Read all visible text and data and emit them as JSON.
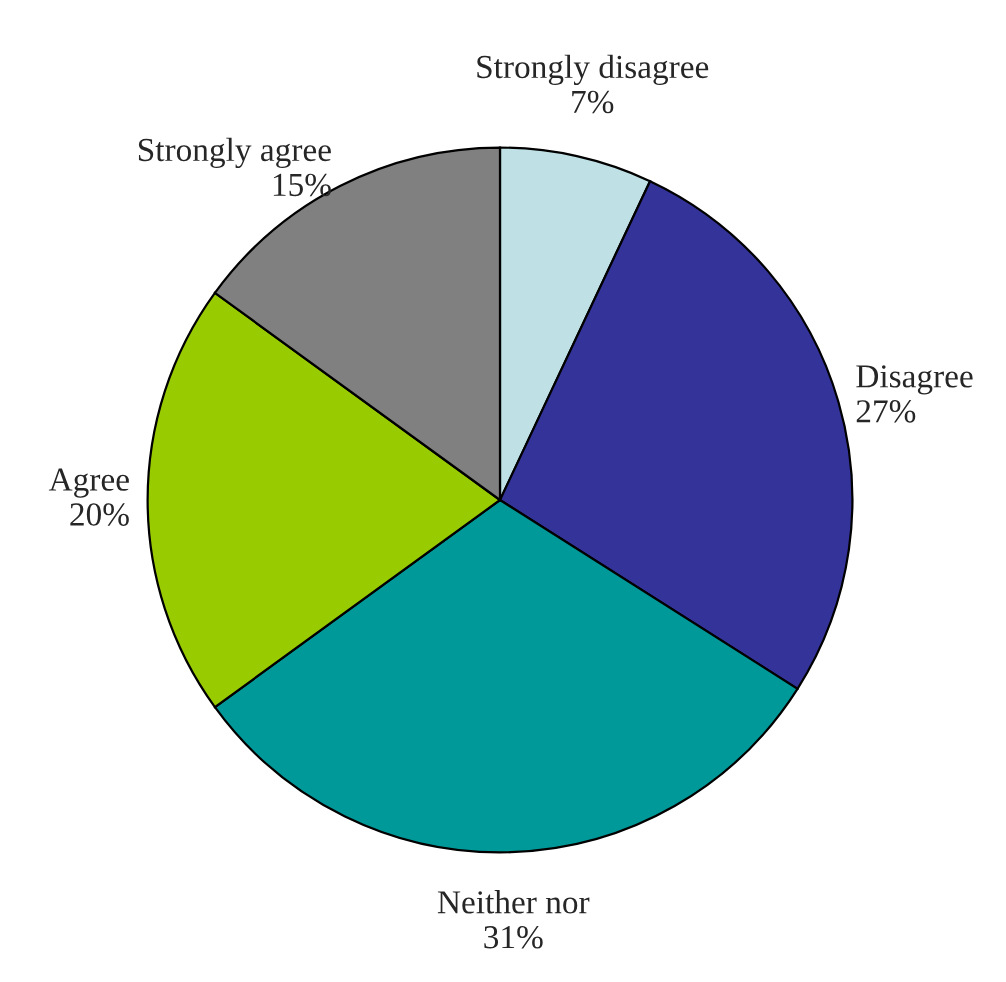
{
  "chart_data": {
    "type": "pie",
    "categories": [
      "Strongly disagree",
      "Disagree",
      "Neither nor",
      "Agree",
      "Strongly agree"
    ],
    "values": [
      7,
      27,
      31,
      20,
      15
    ],
    "value_labels": [
      "7%",
      "27%",
      "31%",
      "20%",
      "15%"
    ],
    "colors": [
      "#bfe1e6",
      "#333399",
      "#009999",
      "#99cc00",
      "#808080"
    ]
  }
}
